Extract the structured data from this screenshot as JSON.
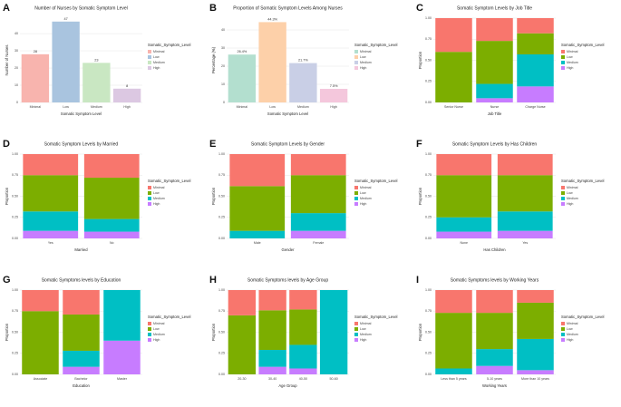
{
  "chart_data": [
    {
      "panel": "A",
      "type": "bar",
      "title": "Number of Nurses by Somatic Symptom Level",
      "xlabel": "Somatic Symptom Level",
      "ylabel": "Number of Nurses",
      "legend_title": "Somatic_Symptom_Level",
      "categories": [
        "Minimal",
        "Low",
        "Medium",
        "High"
      ],
      "values": [
        28,
        47,
        23,
        8
      ],
      "colors": [
        "#f8b4ae",
        "#a9c4df",
        "#c9e7c2",
        "#dcc8e2"
      ],
      "ylim": [
        0,
        49
      ],
      "yticks": [
        0,
        10,
        20,
        30,
        40
      ],
      "grid": true
    },
    {
      "panel": "B",
      "type": "bar",
      "title": "Proportion of Somatic Symptom Levels Among Nurses",
      "xlabel": "Somatic Symptom Level",
      "ylabel": "Percentage (%)",
      "legend_title": "Somatic_Symptom_Level",
      "categories": [
        "Minimal",
        "Low",
        "Medium",
        "High"
      ],
      "values": [
        26.4,
        44.3,
        21.7,
        7.5
      ],
      "value_labels": [
        "26.4%",
        "44.3%",
        "21.7%",
        "7.5%"
      ],
      "colors": [
        "#b3dfcf",
        "#fdd0a9",
        "#c9cfe6",
        "#f4c7dc"
      ],
      "ylim": [
        0,
        46.5
      ],
      "yticks": [
        0,
        10,
        20,
        30,
        40
      ],
      "grid": true
    },
    {
      "panel": "C",
      "type": "stacked_bar",
      "title": "Somatic Symptom Levels by Job Title",
      "xlabel": "Job Title",
      "ylabel": "Proportion",
      "legend_title": "Somatic_Symptom_Level",
      "categories": [
        "Senior Nurse",
        "Nurse",
        "Charge Nurse"
      ],
      "series": [
        {
          "name": "Minimal",
          "color": "#F8766D",
          "values": [
            0.4,
            0.27,
            0.18
          ]
        },
        {
          "name": "Low",
          "color": "#7CAE00",
          "values": [
            0.6,
            0.51,
            0.25
          ]
        },
        {
          "name": "Medium",
          "color": "#00BFC4",
          "values": [
            0,
            0.17,
            0.38
          ]
        },
        {
          "name": "High",
          "color": "#C77CFF",
          "values": [
            0,
            0.05,
            0.19
          ]
        }
      ],
      "ylim": [
        0,
        1
      ],
      "yticks": [
        {
          "value": 0,
          "label": "0.00"
        },
        {
          "value": 0.25,
          "label": "0.25"
        },
        {
          "value": 0.5,
          "label": "0.50"
        },
        {
          "value": 0.75,
          "label": "0.75"
        },
        {
          "value": 1,
          "label": "1.00"
        }
      ],
      "grid": true
    },
    {
      "panel": "D",
      "type": "stacked_bar",
      "title": "Somatic Symptom Levels by Married",
      "xlabel": "Married",
      "ylabel": "Proportion",
      "legend_title": "Somatic_Symptom_Level",
      "categories": [
        "Yes",
        "No"
      ],
      "series": [
        {
          "name": "Minimal",
          "color": "#F8766D",
          "values": [
            0.25,
            0.28
          ]
        },
        {
          "name": "Low",
          "color": "#7CAE00",
          "values": [
            0.43,
            0.49
          ]
        },
        {
          "name": "Medium",
          "color": "#00BFC4",
          "values": [
            0.23,
            0.15
          ]
        },
        {
          "name": "High",
          "color": "#C77CFF",
          "values": [
            0.09,
            0.08
          ]
        }
      ],
      "ylim": [
        0,
        1
      ],
      "yticks": [
        {
          "value": 0,
          "label": "0.00"
        },
        {
          "value": 0.25,
          "label": "0.25"
        },
        {
          "value": 0.5,
          "label": "0.50"
        },
        {
          "value": 0.75,
          "label": "0.75"
        },
        {
          "value": 1,
          "label": "1.00"
        }
      ],
      "grid": true
    },
    {
      "panel": "E",
      "type": "stacked_bar",
      "title": "Somatic Symptom Levels by Gender",
      "xlabel": "Gender",
      "ylabel": "Proportion",
      "legend_title": "Somatic_Symptom_Level",
      "categories": [
        "Male",
        "Female"
      ],
      "series": [
        {
          "name": "Minimal",
          "color": "#F8766D",
          "values": [
            0.38,
            0.25
          ]
        },
        {
          "name": "Low",
          "color": "#7CAE00",
          "values": [
            0.53,
            0.45
          ]
        },
        {
          "name": "Medium",
          "color": "#00BFC4",
          "values": [
            0.09,
            0.21
          ]
        },
        {
          "name": "High",
          "color": "#C77CFF",
          "values": [
            0,
            0.09
          ]
        }
      ],
      "ylim": [
        0,
        1
      ],
      "yticks": [
        {
          "value": 0,
          "label": "0.00"
        },
        {
          "value": 0.25,
          "label": "0.25"
        },
        {
          "value": 0.5,
          "label": "0.50"
        },
        {
          "value": 0.75,
          "label": "0.75"
        },
        {
          "value": 1,
          "label": "1.00"
        }
      ],
      "grid": true
    },
    {
      "panel": "F",
      "type": "stacked_bar",
      "title": "Somatic Symptom Levels by Has Children",
      "xlabel": "Has Children",
      "ylabel": "Proportion",
      "legend_title": "Somatic_Symptom_Level",
      "categories": [
        "None",
        "Yes"
      ],
      "series": [
        {
          "name": "Minimal",
          "color": "#F8766D",
          "values": [
            0.25,
            0.25
          ]
        },
        {
          "name": "Low",
          "color": "#7CAE00",
          "values": [
            0.5,
            0.43
          ]
        },
        {
          "name": "Medium",
          "color": "#00BFC4",
          "values": [
            0.17,
            0.23
          ]
        },
        {
          "name": "High",
          "color": "#C77CFF",
          "values": [
            0.08,
            0.09
          ]
        }
      ],
      "ylim": [
        0,
        1
      ],
      "yticks": [
        {
          "value": 0,
          "label": "0.00"
        },
        {
          "value": 0.25,
          "label": "0.25"
        },
        {
          "value": 0.5,
          "label": "0.50"
        },
        {
          "value": 0.75,
          "label": "0.75"
        },
        {
          "value": 1,
          "label": "1.00"
        }
      ],
      "grid": true
    },
    {
      "panel": "G",
      "type": "stacked_bar",
      "title": "Somatic Symptoms levels by Education",
      "xlabel": "Education",
      "ylabel": "Proportion",
      "legend_title": "Somatic_Symptom_Level",
      "categories": [
        "Associate",
        "Bachelor",
        "Master"
      ],
      "series": [
        {
          "name": "Minimal",
          "color": "#F8766D",
          "values": [
            0.25,
            0.29,
            0
          ]
        },
        {
          "name": "Low",
          "color": "#7CAE00",
          "values": [
            0.75,
            0.43,
            0
          ]
        },
        {
          "name": "Medium",
          "color": "#00BFC4",
          "values": [
            0,
            0.19,
            0.6
          ]
        },
        {
          "name": "High",
          "color": "#C77CFF",
          "values": [
            0,
            0.09,
            0.4
          ]
        }
      ],
      "ylim": [
        0,
        1
      ],
      "yticks": [
        {
          "value": 0,
          "label": "0.00"
        },
        {
          "value": 0.25,
          "label": "0.25"
        },
        {
          "value": 0.5,
          "label": "0.50"
        },
        {
          "value": 0.75,
          "label": "0.75"
        },
        {
          "value": 1,
          "label": "1.00"
        }
      ],
      "grid": true
    },
    {
      "panel": "H",
      "type": "stacked_bar",
      "title": "Somatic Symptoms levels by Age Group",
      "xlabel": "Age Group",
      "ylabel": "Proportion",
      "legend_title": "Somatic_Symptom_Level",
      "categories": [
        "20-30",
        "30-40",
        "40-50",
        "50-60"
      ],
      "series": [
        {
          "name": "Minimal",
          "color": "#F8766D",
          "values": [
            0.3,
            0.24,
            0.23,
            0
          ]
        },
        {
          "name": "Low",
          "color": "#7CAE00",
          "values": [
            0.7,
            0.47,
            0.42,
            0
          ]
        },
        {
          "name": "Medium",
          "color": "#00BFC4",
          "values": [
            0,
            0.2,
            0.28,
            1
          ]
        },
        {
          "name": "High",
          "color": "#C77CFF",
          "values": [
            0,
            0.09,
            0.07,
            0
          ]
        }
      ],
      "ylim": [
        0,
        1
      ],
      "yticks": [
        {
          "value": 0,
          "label": "0.00"
        },
        {
          "value": 0.25,
          "label": "0.25"
        },
        {
          "value": 0.5,
          "label": "0.50"
        },
        {
          "value": 0.75,
          "label": "0.75"
        },
        {
          "value": 1,
          "label": "1.00"
        }
      ],
      "grid": true
    },
    {
      "panel": "I",
      "type": "stacked_bar",
      "title": "Somatic Symptoms levels by Working Years",
      "xlabel": "Working Years",
      "ylabel": "Proportion",
      "legend_title": "Somatic_Symptom_Level",
      "categories": [
        "Less than 5 years",
        "5-10 years",
        "More than 10 years"
      ],
      "series": [
        {
          "name": "Minimal",
          "color": "#F8766D",
          "values": [
            0.27,
            0.27,
            0.15
          ]
        },
        {
          "name": "Low",
          "color": "#7CAE00",
          "values": [
            0.66,
            0.43,
            0.43
          ]
        },
        {
          "name": "Medium",
          "color": "#00BFC4",
          "values": [
            0.07,
            0.2,
            0.37
          ]
        },
        {
          "name": "High",
          "color": "#C77CFF",
          "values": [
            0,
            0.1,
            0.05
          ]
        }
      ],
      "ylim": [
        0,
        1
      ],
      "yticks": [
        {
          "value": 0,
          "label": "0.00"
        },
        {
          "value": 0.25,
          "label": "0.25"
        },
        {
          "value": 0.5,
          "label": "0.50"
        },
        {
          "value": 0.75,
          "label": "0.75"
        },
        {
          "value": 1,
          "label": "1.00"
        }
      ],
      "grid": true
    }
  ]
}
